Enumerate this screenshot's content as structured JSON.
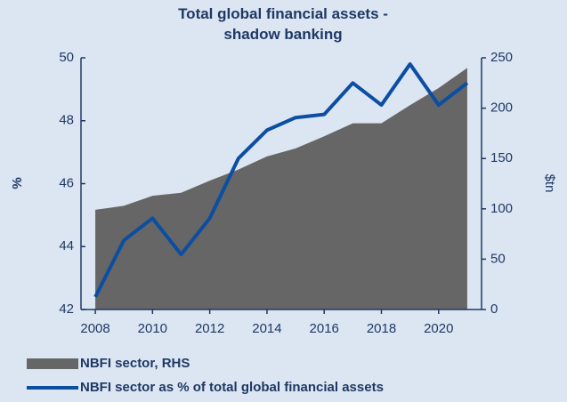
{
  "chart_data": {
    "type": "line",
    "title": "Total global financial assets - shadow banking",
    "ylabel": "%",
    "y2label": "$tn",
    "x": [
      2008,
      2009,
      2010,
      2011,
      2012,
      2013,
      2014,
      2015,
      2016,
      2017,
      2018,
      2019,
      2020,
      2021
    ],
    "xlim": [
      2007.5,
      2021.5
    ],
    "xticks": [
      2008,
      2010,
      2012,
      2014,
      2016,
      2018,
      2020
    ],
    "ylim": [
      42,
      50
    ],
    "yticks": [
      42,
      44,
      46,
      48,
      50
    ],
    "y2lim": [
      0,
      250
    ],
    "y2ticks": [
      0,
      50,
      100,
      150,
      200,
      250
    ],
    "series": [
      {
        "name": "NBFI sector, RHS",
        "color": "#666666",
        "style": "area",
        "axis": "y2",
        "values": [
          99,
          103,
          113,
          116,
          128,
          139,
          152,
          160,
          172,
          185,
          185,
          203,
          220,
          240
        ]
      },
      {
        "name": "NBFI sector as % of total global financial assets",
        "color": "#0b4ea2",
        "style": "line",
        "values": [
          42.4,
          44.2,
          44.9,
          43.75,
          44.9,
          46.8,
          47.7,
          48.1,
          48.2,
          49.2,
          48.5,
          49.8,
          48.5,
          49.2
        ]
      }
    ]
  }
}
